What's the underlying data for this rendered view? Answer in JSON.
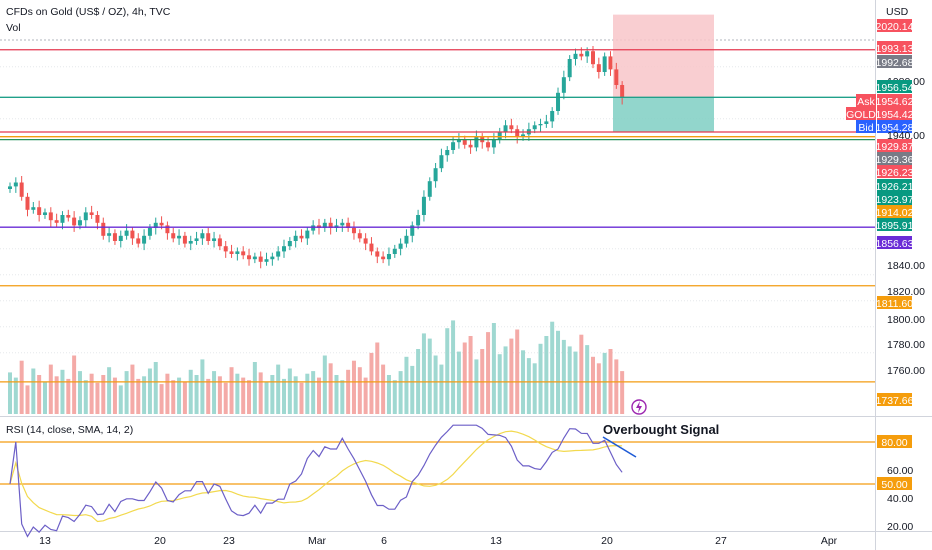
{
  "header": {
    "symbol_title": "CFDs on Gold (US$ / OZ), 4h, TVC",
    "volume_label": "Vol",
    "currency": "USD",
    "rsi_label": "RSI (14, close, SMA, 14, 2)"
  },
  "colors": {
    "up": "#26a69a",
    "down": "#ef5350",
    "vol_up": "#9fd8d1",
    "vol_down": "#f4aaa7",
    "rsi_line": "#6c5fc7",
    "rsi_ma": "#f2d94e",
    "red_line": "#e53950",
    "orange_line": "#f39c12",
    "green_line": "#26915c",
    "teal_line": "#20a08a",
    "purple_line": "#6a2cd6",
    "position_profit": "#7fcfc3",
    "position_loss": "#f8c5c9"
  },
  "chart_data": {
    "type": "candlestick",
    "price_axis": {
      "ticks": [
        "2020.14",
        "1993.13",
        "1992.68",
        "1980.00",
        "1956.54",
        "Ask",
        "1954.62",
        "GOLD",
        "1954.42",
        "Bid",
        "1954.28",
        "1940.00",
        "1929.87",
        "1929.36",
        "1926.23",
        "1926.21",
        "1923.97",
        "1914.02",
        "1895.91",
        "1856.63",
        "1840.00",
        "1820.00",
        "1811.60",
        "1800.00",
        "1780.00",
        "1760.00",
        "1737.66"
      ],
      "grid_labels": [
        "1980.00",
        "1940.00",
        "1840.00",
        "1820.00",
        "1800.00",
        "1780.00",
        "1760.00"
      ]
    },
    "x_axis": {
      "ticks": [
        "13",
        "20",
        "23",
        "Mar",
        "6",
        "13",
        "20",
        "27",
        "Apr"
      ]
    },
    "horizontal_levels": [
      {
        "value": 1993.13,
        "label": "1993.13",
        "color": "red"
      },
      {
        "value": 1956.54,
        "label": "1956.54",
        "color": "teal"
      },
      {
        "value": 1929.87,
        "label": "1929.87",
        "color": "red"
      },
      {
        "value": 1926.23,
        "label": "1926.23",
        "color": "orange"
      },
      {
        "value": 1923.97,
        "label": "1923.97",
        "color": "green"
      },
      {
        "value": 1856.63,
        "label": "1856.63",
        "color": "purple"
      },
      {
        "value": 1811.6,
        "label": "1811.60",
        "color": "orange"
      },
      {
        "value": 1737.66,
        "label": "1737.66",
        "color": "orange"
      }
    ],
    "position_tool": {
      "entry": 1956.54,
      "stop": 2020.14,
      "target": 1929.87
    },
    "candles_close": [
      1888,
      1891,
      1880,
      1870,
      1872,
      1866,
      1868,
      1862,
      1860,
      1866,
      1864,
      1858,
      1862,
      1868,
      1866,
      1860,
      1850,
      1852,
      1846,
      1850,
      1854,
      1848,
      1844,
      1850,
      1856,
      1860,
      1858,
      1852,
      1848,
      1850,
      1844,
      1846,
      1848,
      1852,
      1846,
      1848,
      1842,
      1838,
      1836,
      1838,
      1835,
      1832,
      1834,
      1830,
      1832,
      1834,
      1838,
      1842,
      1846,
      1850,
      1848,
      1854,
      1858,
      1856,
      1860,
      1856,
      1858,
      1860,
      1856,
      1852,
      1848,
      1844,
      1838,
      1834,
      1832,
      1836,
      1840,
      1844,
      1850,
      1858,
      1866,
      1880,
      1892,
      1902,
      1912,
      1916,
      1922,
      1924,
      1920,
      1918,
      1926,
      1922,
      1918,
      1924,
      1930,
      1935,
      1932,
      1926,
      1928,
      1932,
      1935,
      1936,
      1938,
      1946,
      1960,
      1972,
      1986,
      1990,
      1988,
      1992,
      1982,
      1976,
      1988,
      1978,
      1966,
      1956
    ],
    "volume_series": [
      32,
      28,
      41,
      22,
      35,
      30,
      25,
      38,
      29,
      34,
      27,
      45,
      33,
      26,
      31,
      24,
      30,
      36,
      28,
      22,
      33,
      38,
      27,
      29,
      35,
      40,
      23,
      31,
      26,
      28,
      25,
      34,
      30,
      42,
      27,
      33,
      29,
      24,
      36,
      31,
      28,
      26,
      40,
      32,
      25,
      30,
      38,
      27,
      35,
      29,
      24,
      31,
      33,
      28,
      45,
      39,
      30,
      26,
      34,
      41,
      36,
      28,
      47,
      55,
      38,
      30,
      26,
      33,
      44,
      37,
      50,
      62,
      58,
      45,
      38,
      66,
      72,
      48,
      55,
      60,
      42,
      50,
      63,
      70,
      46,
      52,
      58,
      65,
      49,
      43,
      39,
      54,
      60,
      71,
      64,
      57,
      52,
      48,
      61,
      53,
      44,
      39,
      47,
      50,
      42,
      33
    ],
    "rsi": {
      "levels": [
        80,
        50
      ],
      "level_labels": [
        "80.00",
        "50.00"
      ],
      "ticks": [
        "80.00",
        "60.00",
        "50.00",
        "40.00",
        "20.00"
      ]
    }
  },
  "annotations": {
    "overbought": "Overbought Signal"
  }
}
